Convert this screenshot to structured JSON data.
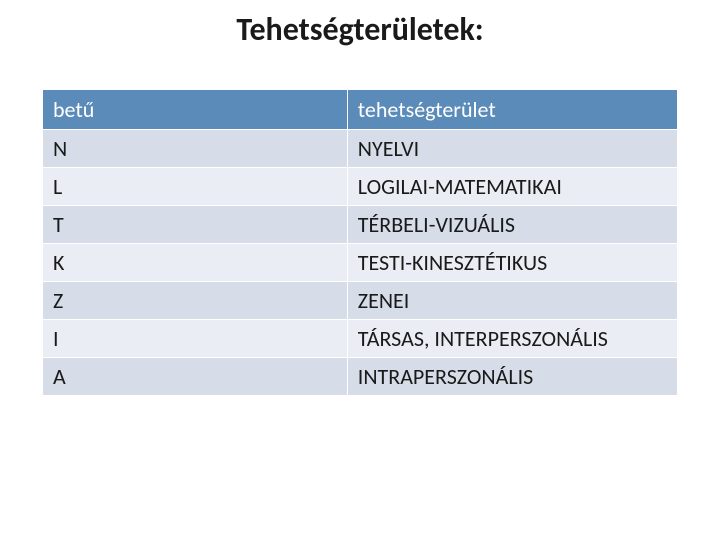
{
  "title": "Tehetségterületek:",
  "table": {
    "header_bg": "#5b8bb8",
    "header_fg": "#ffffff",
    "row_odd_bg": "#d6dde8",
    "row_even_bg": "#eaedf3",
    "columns": [
      "betű",
      "tehetségterület"
    ],
    "rows": [
      [
        "N",
        "NYELVI"
      ],
      [
        "L",
        "LOGILAI-MATEMATIKAI"
      ],
      [
        "T",
        "TÉRBELI-VIZUÁLIS"
      ],
      [
        "K",
        "TESTI-KINESZTÉTIKUS"
      ],
      [
        "Z",
        "ZENEI"
      ],
      [
        "I",
        "TÁRSAS, INTERPERSZONÁLIS"
      ],
      [
        "A",
        "INTRAPERSZONÁLIS"
      ]
    ]
  }
}
